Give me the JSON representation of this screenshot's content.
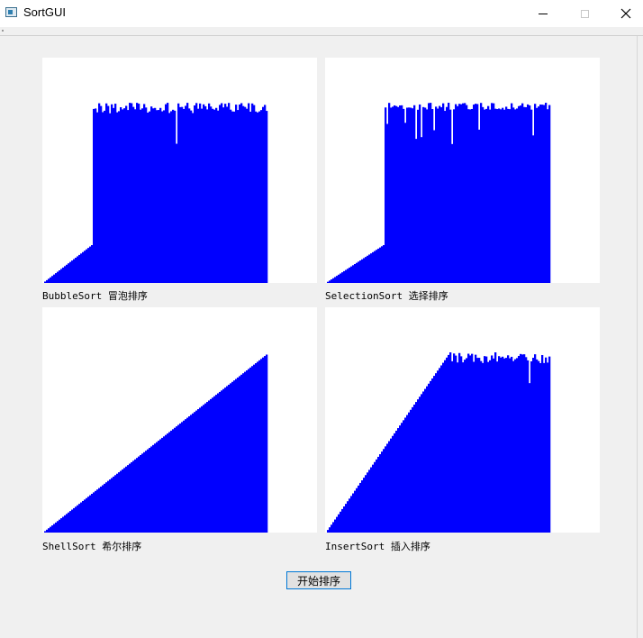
{
  "window": {
    "title": "SortGUI"
  },
  "panels": [
    {
      "name": "bubble",
      "caption": "BubbleSort 冒泡排序",
      "pattern": "sorted-prefix",
      "sorted_fraction": 0.22,
      "top_level": 0.8,
      "noise_depth": 0.12
    },
    {
      "name": "selection",
      "caption": "SelectionSort 选择排序",
      "pattern": "sorted-prefix",
      "sorted_fraction": 0.26,
      "top_level": 0.8,
      "noise_depth": 0.08
    },
    {
      "name": "shell",
      "caption": "ShellSort 希尔排序",
      "pattern": "sorted",
      "sorted_fraction": 1.0,
      "top_level": 0.79,
      "noise_depth": 0.0
    },
    {
      "name": "insert",
      "caption": "InsertSort 插入排序",
      "pattern": "sorted-ramp-then-noise",
      "sorted_fraction": 0.56,
      "top_level": 0.8,
      "noise_depth": 0.12
    }
  ],
  "bar_color": "#0000ff",
  "start_button": {
    "label": "开始排序"
  }
}
